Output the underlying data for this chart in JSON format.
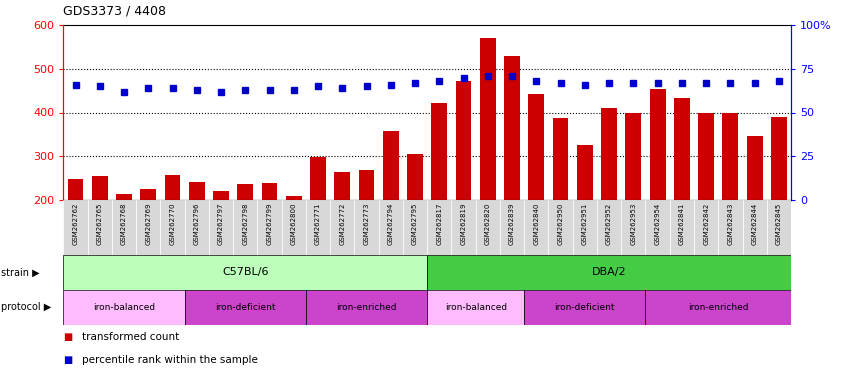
{
  "title": "GDS3373 / 4408",
  "samples": [
    "GSM262762",
    "GSM262765",
    "GSM262768",
    "GSM262769",
    "GSM262770",
    "GSM262796",
    "GSM262797",
    "GSM262798",
    "GSM262799",
    "GSM262800",
    "GSM262771",
    "GSM262772",
    "GSM262773",
    "GSM262794",
    "GSM262795",
    "GSM262817",
    "GSM262819",
    "GSM262820",
    "GSM262839",
    "GSM262840",
    "GSM262950",
    "GSM262951",
    "GSM262952",
    "GSM262953",
    "GSM262954",
    "GSM262841",
    "GSM262842",
    "GSM262843",
    "GSM262844",
    "GSM262845"
  ],
  "bar_values": [
    248,
    255,
    213,
    225,
    258,
    242,
    220,
    236,
    238,
    210,
    298,
    264,
    268,
    357,
    305,
    422,
    472,
    570,
    530,
    443,
    388,
    325,
    410,
    400,
    453,
    433,
    400,
    400,
    347,
    390
  ],
  "percentile_values": [
    66,
    65,
    62,
    64,
    64,
    63,
    62,
    63,
    63,
    63,
    65,
    64,
    65,
    66,
    67,
    68,
    70,
    71,
    71,
    68,
    67,
    66,
    67,
    67,
    67,
    67,
    67,
    67,
    67,
    68
  ],
  "bar_color": "#cc0000",
  "dot_color": "#0000cc",
  "ylim_left": [
    200,
    600
  ],
  "ylim_right": [
    0,
    100
  ],
  "yticks_left": [
    200,
    300,
    400,
    500,
    600
  ],
  "yticks_right": [
    0,
    25,
    50,
    75,
    100
  ],
  "ytick_right_labels": [
    "0",
    "25",
    "50",
    "75",
    "100%"
  ],
  "strain_groups": [
    {
      "label": "C57BL/6",
      "start": 0,
      "end": 15,
      "color": "#bbffbb"
    },
    {
      "label": "DBA/2",
      "start": 15,
      "end": 30,
      "color": "#44cc44"
    }
  ],
  "protocol_groups": [
    {
      "label": "iron-balanced",
      "start": 0,
      "end": 5,
      "color": "#ffbbff"
    },
    {
      "label": "iron-deficient",
      "start": 5,
      "end": 10,
      "color": "#cc44cc"
    },
    {
      "label": "iron-enriched",
      "start": 10,
      "end": 15,
      "color": "#cc44cc"
    },
    {
      "label": "iron-balanced",
      "start": 15,
      "end": 19,
      "color": "#ffbbff"
    },
    {
      "label": "iron-deficient",
      "start": 19,
      "end": 24,
      "color": "#cc44cc"
    },
    {
      "label": "iron-enriched",
      "start": 24,
      "end": 30,
      "color": "#cc44cc"
    }
  ],
  "xtick_bg_color": "#d8d8d8",
  "chart_bg_color": "#ffffff",
  "hgrid_lines": [
    300,
    400,
    500
  ],
  "hgrid_color": "#000000",
  "hgrid_style": ":"
}
